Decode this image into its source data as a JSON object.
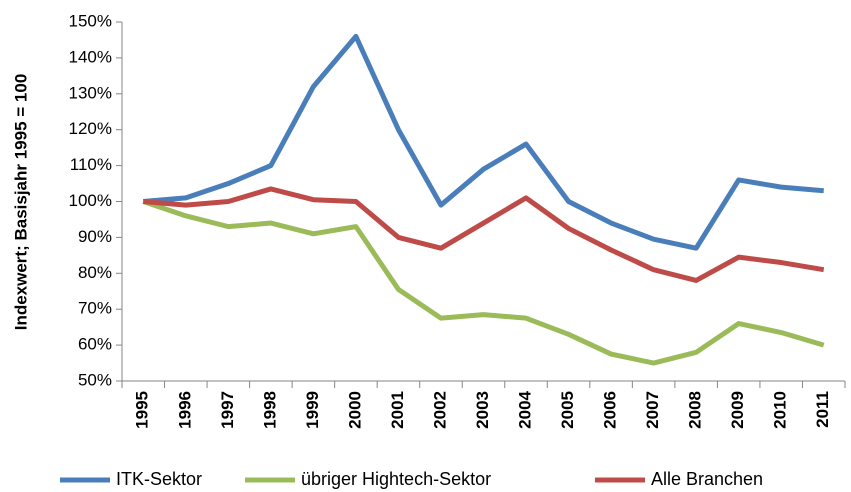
{
  "chart_data": {
    "type": "line",
    "y_label": "Indexwert; Basisjahr 1995 = 100",
    "categories": [
      "1995",
      "1996",
      "1997",
      "1998",
      "1999",
      "2000",
      "2001",
      "2002",
      "2003",
      "2004",
      "2005",
      "2006",
      "2007",
      "2008",
      "2009",
      "2010",
      "2011"
    ],
    "series": [
      {
        "name": "ITK-Sektor",
        "color": "#4a7ebb",
        "values": [
          100,
          101,
          105,
          110,
          132,
          146,
          120,
          99,
          109,
          116,
          100,
          94,
          89.5,
          87,
          106,
          104,
          103
        ]
      },
      {
        "name": "übriger Hightech-Sektor",
        "color": "#9bbb59",
        "values": [
          100,
          96,
          93,
          94,
          91,
          93,
          75.5,
          67.5,
          68.5,
          67.5,
          63,
          57.5,
          55,
          58,
          66,
          63.5,
          60
        ]
      },
      {
        "name": "Alle Branchen",
        "color": "#be4b48",
        "values": [
          100,
          99,
          100,
          103.5,
          100.5,
          100,
          90,
          87,
          94,
          101,
          92.5,
          86.5,
          81,
          78,
          84.5,
          83,
          81
        ]
      }
    ],
    "ylim": [
      50,
      150
    ],
    "yticks": [
      {
        "value": 50,
        "label": "50%"
      },
      {
        "value": 60,
        "label": "60%"
      },
      {
        "value": 70,
        "label": "70%"
      },
      {
        "value": 80,
        "label": "80%"
      },
      {
        "value": 90,
        "label": "90%"
      },
      {
        "value": 100,
        "label": "100%"
      },
      {
        "value": 110,
        "label": "110%"
      },
      {
        "value": 120,
        "label": "120%"
      },
      {
        "value": 130,
        "label": "130%"
      },
      {
        "value": 140,
        "label": "140%"
      },
      {
        "value": 150,
        "label": "150%"
      }
    ],
    "legend": "bottom"
  }
}
